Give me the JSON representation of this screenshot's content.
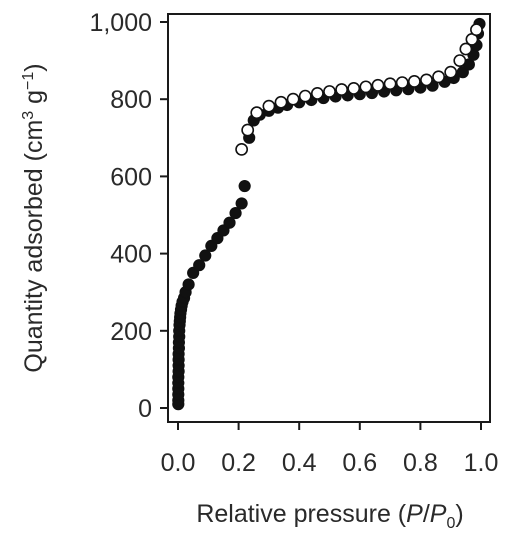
{
  "chart_data": {
    "type": "scatter",
    "xlabel": "Relative pressure (P/P0)",
    "ylabel": "Quantity adsorbed (cm3 g−1)",
    "xlim": [
      0,
      1.0
    ],
    "ylim": [
      0,
      1000
    ],
    "xticks": [
      "0.0",
      "0.2",
      "0.4",
      "0.6",
      "0.8",
      "1.0"
    ],
    "yticks": [
      "0",
      "200",
      "400",
      "600",
      "800",
      "1,000"
    ],
    "xtick_values": [
      0,
      0.2,
      0.4,
      0.6,
      0.8,
      1.0
    ],
    "ytick_values": [
      0,
      200,
      400,
      600,
      800,
      1000
    ],
    "grid": false,
    "series": [
      {
        "marker": "filled-circle",
        "color": "#111111",
        "x": [
          0.001,
          0.001,
          0.001,
          0.001,
          0.001,
          0.001,
          0.002,
          0.002,
          0.002,
          0.002,
          0.003,
          0.003,
          0.004,
          0.004,
          0.005,
          0.006,
          0.007,
          0.008,
          0.01,
          0.012,
          0.015,
          0.02,
          0.025,
          0.035,
          0.05,
          0.07,
          0.09,
          0.11,
          0.13,
          0.15,
          0.17,
          0.19,
          0.21,
          0.22,
          0.235,
          0.25,
          0.27,
          0.3,
          0.33,
          0.36,
          0.4,
          0.44,
          0.48,
          0.52,
          0.56,
          0.6,
          0.64,
          0.68,
          0.72,
          0.76,
          0.8,
          0.84,
          0.88,
          0.91,
          0.94,
          0.96,
          0.975,
          0.985,
          0.99,
          0.995
        ],
        "y": [
          10,
          20,
          35,
          50,
          65,
          80,
          95,
          110,
          125,
          140,
          155,
          170,
          185,
          200,
          215,
          225,
          235,
          245,
          255,
          265,
          275,
          285,
          300,
          320,
          350,
          370,
          395,
          420,
          440,
          460,
          480,
          505,
          530,
          575,
          700,
          745,
          760,
          770,
          778,
          785,
          792,
          798,
          803,
          807,
          810,
          813,
          816,
          820,
          823,
          826,
          830,
          835,
          845,
          855,
          870,
          890,
          915,
          940,
          970,
          995
        ]
      },
      {
        "marker": "open-circle",
        "color": "#111111",
        "x": [
          0.21,
          0.23,
          0.26,
          0.3,
          0.34,
          0.38,
          0.42,
          0.46,
          0.5,
          0.54,
          0.58,
          0.62,
          0.66,
          0.7,
          0.74,
          0.78,
          0.82,
          0.86,
          0.9,
          0.93,
          0.95,
          0.97,
          0.985
        ],
        "y": [
          670,
          720,
          765,
          782,
          792,
          800,
          808,
          815,
          820,
          825,
          828,
          832,
          836,
          840,
          843,
          846,
          850,
          858,
          870,
          900,
          930,
          955,
          980
        ]
      }
    ]
  }
}
